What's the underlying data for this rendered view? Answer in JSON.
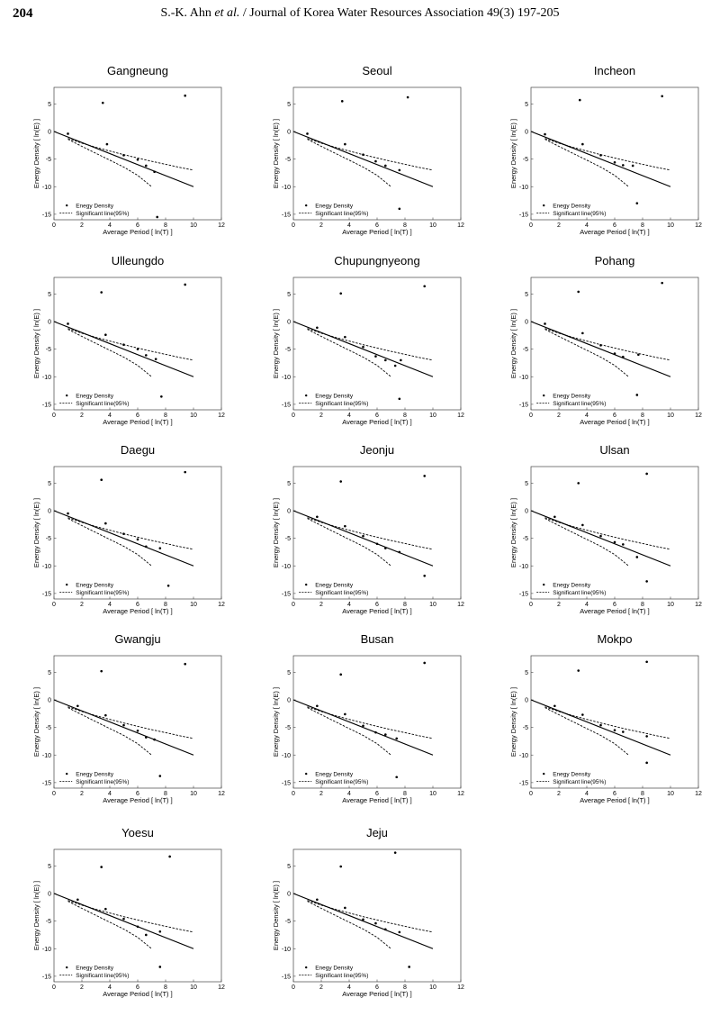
{
  "header": {
    "page_number": "204",
    "authors": "S.-K. Ahn",
    "et_al": "et al.",
    "journal": "/ Journal of Korea Water Resources Association 49(3) 197-205"
  },
  "common": {
    "xlabel": "Average Period [ ln(T) ]",
    "ylabel": "Energy Density [ ln(E) ]",
    "xlim": [
      0,
      12
    ],
    "ylim": [
      -16,
      8
    ],
    "xticks": [
      0,
      2,
      4,
      6,
      8,
      10,
      12
    ],
    "yticks": [
      5,
      0,
      -5,
      -10,
      -15
    ],
    "legend": {
      "points_label": "Enegy Density",
      "line_label": "Significant line(95%)"
    },
    "mean_line": [
      [
        0,
        0
      ],
      [
        10,
        -10
      ]
    ],
    "upper_bound": [
      [
        1,
        -1.25
      ],
      [
        2,
        -2.1
      ],
      [
        3,
        -2.85
      ],
      [
        4,
        -3.55
      ],
      [
        5,
        -4.2
      ],
      [
        6,
        -4.8
      ],
      [
        7,
        -5.4
      ],
      [
        8,
        -5.95
      ],
      [
        9,
        -6.5
      ],
      [
        10,
        -7
      ]
    ],
    "lower_bound": [
      [
        1,
        -1.4
      ],
      [
        2,
        -2.7
      ],
      [
        3,
        -3.95
      ],
      [
        4,
        -5.2
      ],
      [
        5,
        -6.45
      ],
      [
        6,
        -7.95
      ],
      [
        7,
        -10
      ]
    ]
  },
  "chart_data": [
    {
      "type": "scatter",
      "title": "Gangneung",
      "points": [
        [
          1.0,
          -0.4
        ],
        [
          3.5,
          5.2
        ],
        [
          3.8,
          -2.3
        ],
        [
          5.0,
          -4.3
        ],
        [
          6.0,
          -5.1
        ],
        [
          6.6,
          -6.2
        ],
        [
          7.2,
          -7.3
        ],
        [
          7.4,
          -15.5
        ],
        [
          9.4,
          6.5
        ]
      ]
    },
    {
      "type": "scatter",
      "title": "Seoul",
      "points": [
        [
          1.0,
          -0.4
        ],
        [
          3.5,
          5.5
        ],
        [
          3.7,
          -2.3
        ],
        [
          5.0,
          -4.2
        ],
        [
          5.9,
          -5.4
        ],
        [
          6.6,
          -6.2
        ],
        [
          7.6,
          -14.0
        ],
        [
          7.6,
          -7.0
        ],
        [
          8.2,
          6.2
        ]
      ]
    },
    {
      "type": "scatter",
      "title": "Incheon",
      "points": [
        [
          1.0,
          -0.5
        ],
        [
          3.5,
          5.7
        ],
        [
          3.7,
          -2.3
        ],
        [
          5.0,
          -4.3
        ],
        [
          6.0,
          -5.6
        ],
        [
          6.6,
          -6.1
        ],
        [
          7.3,
          -6.2
        ],
        [
          7.6,
          -13.0
        ],
        [
          9.4,
          6.4
        ]
      ]
    },
    {
      "type": "scatter",
      "title": "Ulleungdo",
      "points": [
        [
          1.0,
          -0.4
        ],
        [
          3.4,
          5.3
        ],
        [
          3.7,
          -2.4
        ],
        [
          5.0,
          -4.2
        ],
        [
          6.0,
          -5.0
        ],
        [
          6.6,
          -6.1
        ],
        [
          7.3,
          -6.8
        ],
        [
          7.7,
          -13.6
        ],
        [
          9.4,
          6.7
        ]
      ]
    },
    {
      "type": "scatter",
      "title": "Chupungnyeong",
      "points": [
        [
          1.7,
          -1.1
        ],
        [
          3.4,
          5.1
        ],
        [
          3.7,
          -2.8
        ],
        [
          5.0,
          -4.6
        ],
        [
          5.9,
          -6.3
        ],
        [
          6.6,
          -7.0
        ],
        [
          7.3,
          -8.0
        ],
        [
          7.6,
          -14.0
        ],
        [
          7.7,
          -7.0
        ],
        [
          9.4,
          6.4
        ]
      ]
    },
    {
      "type": "scatter",
      "title": "Pohang",
      "points": [
        [
          1.0,
          -0.4
        ],
        [
          3.4,
          5.4
        ],
        [
          3.7,
          -2.1
        ],
        [
          5.0,
          -4.3
        ],
        [
          6.0,
          -5.8
        ],
        [
          6.6,
          -6.4
        ],
        [
          7.6,
          -13.3
        ],
        [
          7.7,
          -6.0
        ],
        [
          9.4,
          7.0
        ]
      ]
    },
    {
      "type": "scatter",
      "title": "Daegu",
      "points": [
        [
          1.0,
          -0.5
        ],
        [
          3.4,
          5.6
        ],
        [
          3.7,
          -2.3
        ],
        [
          5.0,
          -4.2
        ],
        [
          6.0,
          -5.2
        ],
        [
          6.6,
          -6.5
        ],
        [
          7.6,
          -6.8
        ],
        [
          8.2,
          -13.6
        ],
        [
          9.4,
          7.0
        ]
      ]
    },
    {
      "type": "scatter",
      "title": "Jeonju",
      "points": [
        [
          1.7,
          -1.1
        ],
        [
          3.4,
          5.3
        ],
        [
          3.7,
          -2.8
        ],
        [
          5.0,
          -4.6
        ],
        [
          6.0,
          -6.0
        ],
        [
          6.6,
          -6.8
        ],
        [
          7.6,
          -7.5
        ],
        [
          9.4,
          -11.8
        ],
        [
          9.4,
          6.3
        ]
      ]
    },
    {
      "type": "scatter",
      "title": "Ulsan",
      "points": [
        [
          1.7,
          -1.1
        ],
        [
          3.4,
          5.0
        ],
        [
          3.7,
          -2.6
        ],
        [
          5.0,
          -4.6
        ],
        [
          6.0,
          -5.7
        ],
        [
          6.6,
          -6.1
        ],
        [
          7.6,
          -8.4
        ],
        [
          8.3,
          -12.8
        ],
        [
          8.3,
          6.7
        ]
      ]
    },
    {
      "type": "scatter",
      "title": "Gwangju",
      "points": [
        [
          1.7,
          -1.1
        ],
        [
          3.4,
          5.2
        ],
        [
          3.7,
          -2.8
        ],
        [
          5.0,
          -4.6
        ],
        [
          6.0,
          -5.6
        ],
        [
          6.6,
          -6.8
        ],
        [
          7.2,
          -7.2
        ],
        [
          7.6,
          -13.8
        ],
        [
          9.4,
          6.5
        ]
      ]
    },
    {
      "type": "scatter",
      "title": "Busan",
      "points": [
        [
          1.7,
          -1.1
        ],
        [
          3.4,
          4.6
        ],
        [
          3.7,
          -2.6
        ],
        [
          5.0,
          -4.7
        ],
        [
          5.9,
          -5.9
        ],
        [
          6.6,
          -6.3
        ],
        [
          7.4,
          -14.0
        ],
        [
          7.4,
          -7.0
        ],
        [
          9.4,
          6.7
        ]
      ]
    },
    {
      "type": "scatter",
      "title": "Mokpo",
      "points": [
        [
          1.7,
          -1.1
        ],
        [
          3.4,
          5.3
        ],
        [
          3.7,
          -2.7
        ],
        [
          5.0,
          -4.6
        ],
        [
          6.0,
          -5.5
        ],
        [
          6.6,
          -5.8
        ],
        [
          8.3,
          -11.4
        ],
        [
          8.3,
          -6.6
        ],
        [
          8.3,
          6.9
        ]
      ]
    },
    {
      "type": "scatter",
      "title": "Yoesu",
      "points": [
        [
          1.7,
          -1.1
        ],
        [
          3.4,
          4.8
        ],
        [
          3.7,
          -2.8
        ],
        [
          5.0,
          -4.6
        ],
        [
          6.0,
          -6.0
        ],
        [
          6.6,
          -7.5
        ],
        [
          7.6,
          -13.3
        ],
        [
          7.6,
          -6.9
        ],
        [
          8.3,
          6.7
        ]
      ]
    },
    {
      "type": "scatter",
      "title": "Jeju",
      "points": [
        [
          1.7,
          -1.1
        ],
        [
          3.4,
          4.9
        ],
        [
          3.7,
          -2.6
        ],
        [
          5.0,
          -4.7
        ],
        [
          5.9,
          -5.4
        ],
        [
          6.6,
          -6.5
        ],
        [
          7.3,
          7.4
        ],
        [
          7.6,
          -7.0
        ],
        [
          8.3,
          -13.3
        ]
      ]
    }
  ]
}
